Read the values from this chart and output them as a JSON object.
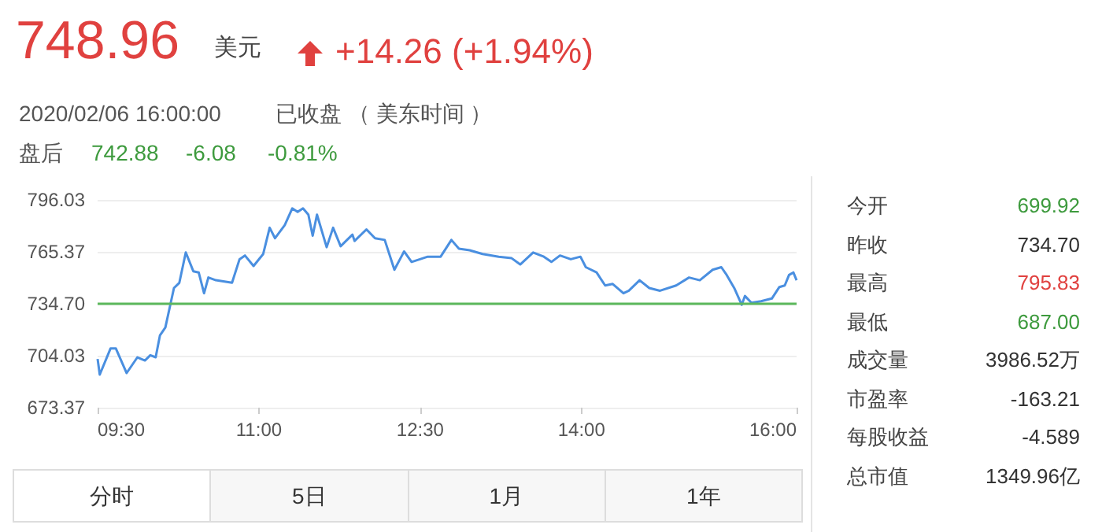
{
  "chart_data": {
    "type": "line",
    "x": [
      9.5,
      9.52,
      9.62,
      9.67,
      9.77,
      9.87,
      9.94,
      9.99,
      10.04,
      10.08,
      10.13,
      10.21,
      10.26,
      10.32,
      10.39,
      10.44,
      10.49,
      10.53,
      10.6,
      10.75,
      10.82,
      10.87,
      10.95,
      11.04,
      11.1,
      11.15,
      11.24,
      11.31,
      11.36,
      11.41,
      11.46,
      11.5,
      11.54,
      11.63,
      11.69,
      11.76,
      11.81,
      11.87,
      11.89,
      12.0,
      12.08,
      12.17,
      12.26,
      12.35,
      12.42,
      12.57,
      12.69,
      12.79,
      12.86,
      12.96,
      13.08,
      13.23,
      13.35,
      13.43,
      13.55,
      13.65,
      13.72,
      13.8,
      13.9,
      13.99,
      14.04,
      14.14,
      14.22,
      14.29,
      14.39,
      14.44,
      14.54,
      14.63,
      14.73,
      14.88,
      15.0,
      15.1,
      15.22,
      15.3,
      15.35,
      15.42,
      15.49,
      15.52,
      15.58,
      15.67,
      15.77,
      15.84,
      15.89,
      15.93,
      15.97,
      16.0
    ],
    "series": [
      {
        "color": "#4a8fe0",
        "values": [
          702.1,
          692.9,
          708.3,
          708.3,
          693.8,
          703.1,
          701.2,
          704.3,
          703.1,
          716.1,
          720.7,
          744.0,
          747.1,
          765.0,
          753.9,
          753.2,
          740.9,
          750.2,
          748.6,
          747.1,
          761.0,
          763.2,
          757.0,
          764.1,
          779.6,
          773.4,
          781.1,
          791.0,
          788.9,
          791.0,
          787.3,
          774.9,
          787.3,
          768.1,
          779.6,
          768.7,
          771.8,
          775.5,
          771.8,
          778.6,
          773.4,
          772.4,
          754.8,
          765.6,
          759.4,
          762.5,
          762.5,
          772.4,
          767.2,
          766.3,
          764.1,
          762.5,
          761.6,
          757.9,
          765.0,
          762.5,
          759.4,
          763.2,
          761.0,
          762.5,
          756.3,
          753.2,
          745.5,
          746.4,
          740.9,
          742.4,
          748.6,
          744.0,
          742.4,
          745.5,
          750.2,
          748.6,
          754.8,
          756.3,
          751.7,
          744.0,
          734.1,
          739.3,
          735.3,
          736.2,
          737.8,
          744.6,
          745.5,
          751.7,
          753.2,
          748.6
        ]
      }
    ],
    "xlim": [
      9.5,
      16
    ],
    "xticks": [
      {
        "value": 9.5,
        "label": "09:30"
      },
      {
        "value": 11,
        "label": "11:00"
      },
      {
        "value": 12.5,
        "label": "12:30"
      },
      {
        "value": 14,
        "label": "14:00"
      },
      {
        "value": 16,
        "label": "16:00"
      }
    ],
    "ylim": [
      673.37,
      796.03
    ],
    "yticks": [
      673.37,
      704.03,
      {
        "value": 734.7,
        "label": "734.70"
      },
      765.37,
      796.03
    ],
    "grid": "y",
    "marker": "none",
    "line_style": "solid",
    "ref_lines": [
      {
        "axis": "y",
        "value": 734.7,
        "color": "#5cb85c"
      }
    ],
    "annotations": [
      "748.96",
      "美元",
      "+14.26 (+1.94%)",
      "2020/02/06 16:00:00",
      "已收盘 （ 美东时间 ）",
      "盘后",
      "742.88",
      "-6.08",
      "-0.81%",
      "今开",
      "699.92",
      "昨收",
      "734.70",
      "最高",
      "795.83",
      "最低",
      "687.00",
      "成交量",
      "3986.52万",
      "市盈率",
      "-163.21",
      "每股收益",
      "-4.589",
      "总市值",
      "1349.96亿",
      "分时",
      "5日",
      "1月",
      "1年"
    ]
  }
}
